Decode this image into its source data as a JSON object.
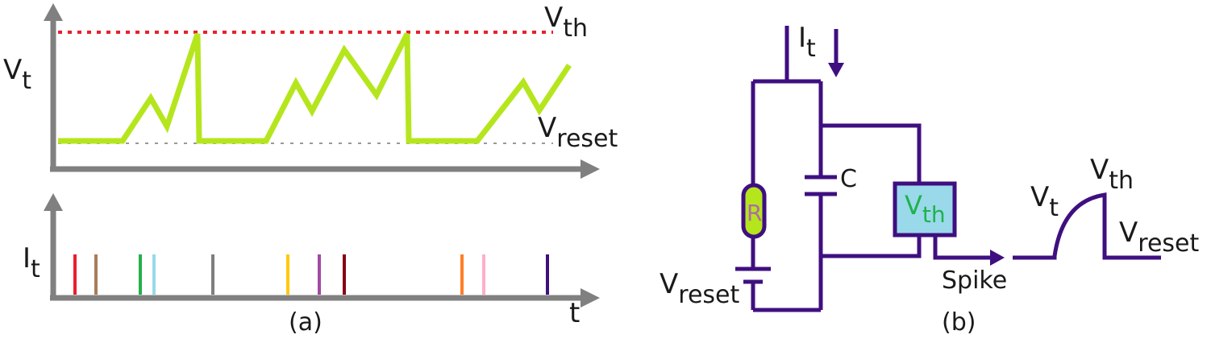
{
  "panel_a": {
    "caption": "(a)",
    "voltage_plot": {
      "y_label": "V",
      "y_label_sub": "t",
      "threshold_label": "V",
      "threshold_label_sub": "th",
      "reset_label": "V",
      "reset_label_sub": "reset",
      "threshold_color": "#e8202a",
      "trace_color": "#b5e61d",
      "axis_color": "#808080"
    },
    "spike_plot": {
      "y_label": "I",
      "y_label_sub": "t",
      "x_label": "t",
      "spike_colors": [
        "#e8202a",
        "#a87d5a",
        "#22b14c",
        "#99d9ea",
        "#7f7f7f",
        "#ffc90e",
        "#a349a4",
        "#880015",
        "#ff7f27",
        "#ffaec9",
        "#3f0f80"
      ]
    }
  },
  "panel_b": {
    "caption": "(b)",
    "current_label": "I",
    "current_label_sub": "t",
    "resistor_label": "R",
    "capacitor_label": "C",
    "threshold_box_label": "V",
    "threshold_box_label_sub": "th",
    "reset_source_label": "V",
    "reset_source_label_sub": "reset",
    "spike_label": "Spike",
    "wave_start_label": "V",
    "wave_start_label_sub": "t",
    "wave_peak_label": "V",
    "wave_peak_label_sub": "th",
    "wave_end_label": "V",
    "wave_end_label_sub": "reset",
    "wire_color": "#3f0f80",
    "threshold_box_fill": "#99d9ea",
    "resistor_fill": "#b5e61d"
  }
}
